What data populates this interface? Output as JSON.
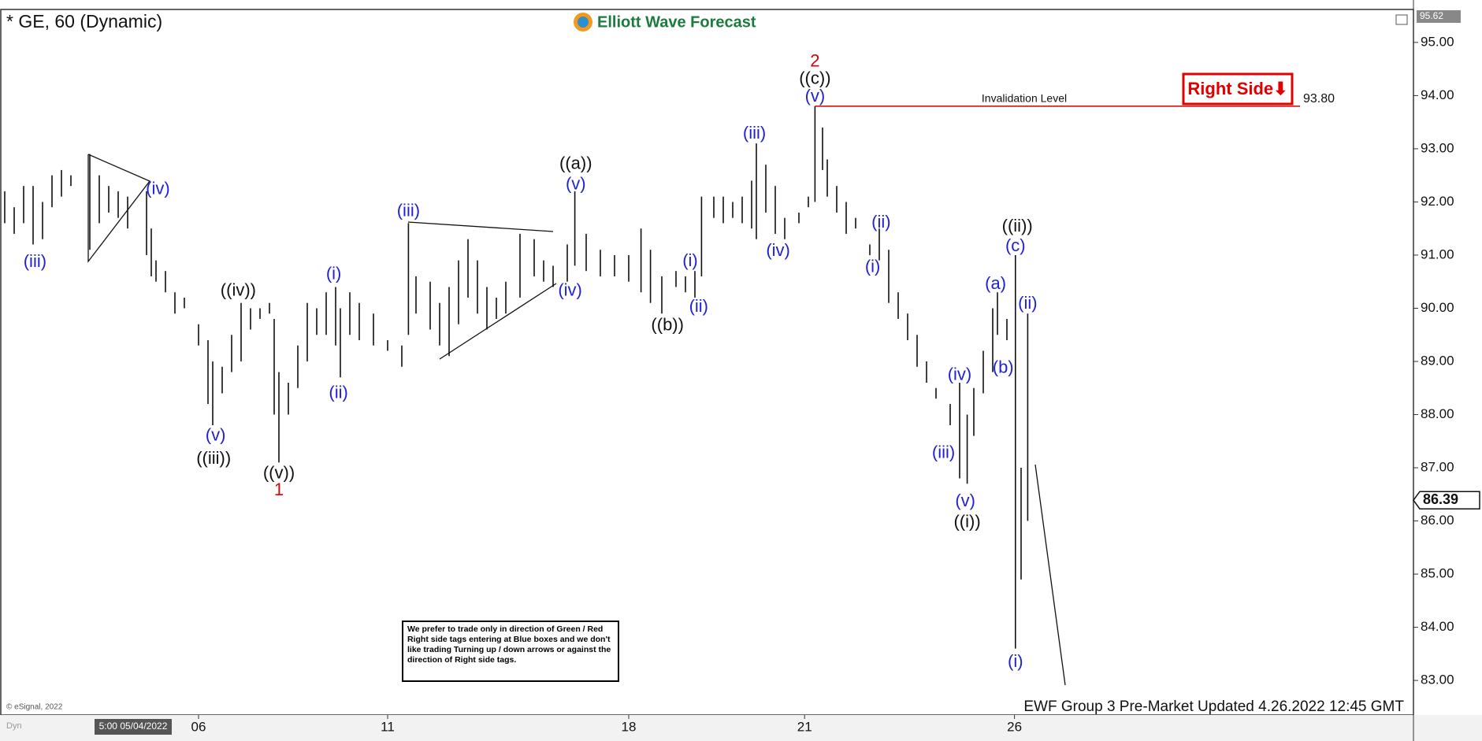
{
  "header": {
    "symbol": "* GE, 60 (Dynamic)",
    "logo": "Elliott Wave Forecast",
    "tag": "Right Side⬇"
  },
  "chart_data": {
    "type": "ohlc",
    "xlim": [
      0,
      149.5
    ],
    "ylim": [
      82.35,
      95.62
    ],
    "axis_top_label": 95.62,
    "yticks": [
      {
        "value": 83,
        "label": "83.00"
      },
      {
        "value": 84,
        "label": "84.00"
      },
      {
        "value": 85,
        "label": "85.00"
      },
      {
        "value": 86,
        "label": "86.00"
      },
      {
        "value": 87,
        "label": "87.00"
      },
      {
        "value": 88,
        "label": "88.00"
      },
      {
        "value": 89,
        "label": "89.00"
      },
      {
        "value": 90,
        "label": "90.00"
      },
      {
        "value": 91,
        "label": "91.00"
      },
      {
        "value": 92,
        "label": "92.00"
      },
      {
        "value": 93,
        "label": "93.00"
      },
      {
        "value": 94,
        "label": "94.00"
      },
      {
        "value": 95,
        "label": "95.00"
      }
    ],
    "xticks": [
      {
        "value": 21,
        "label": "06"
      },
      {
        "value": 41,
        "label": "11"
      },
      {
        "value": 66.5,
        "label": "18"
      },
      {
        "value": 85.1,
        "label": "21"
      },
      {
        "value": 107.3,
        "label": "26"
      }
    ],
    "color": "#111111",
    "x": [
      0.5,
      1.5,
      2.5,
      3.5,
      4.5,
      5.5,
      6.5,
      7.5,
      9.5,
      10.5,
      11.5,
      12.5,
      13.5,
      15.5,
      16,
      16.5,
      17.5,
      18.5,
      19.5,
      21,
      22,
      22.5,
      23.5,
      24.5,
      25.5,
      26.5,
      27.5,
      28.5,
      29,
      29.5,
      30.5,
      31.5,
      32.5,
      33.5,
      34.5,
      35.5,
      36,
      37,
      38,
      39.5,
      41,
      42.5,
      43.2,
      44,
      45.5,
      46.5,
      47.5,
      48.5,
      49.5,
      50.5,
      51.5,
      52.5,
      53.5,
      55,
      56.5,
      57.5,
      58.5,
      60,
      60.8,
      62,
      63.5,
      65,
      66.5,
      67.8,
      68.8,
      70,
      71.5,
      72.5,
      73.5,
      74.2,
      75.5,
      76.5,
      77.5,
      78.5,
      79.5,
      80,
      81,
      82,
      83,
      84.5,
      85.5,
      86.2,
      87,
      87.5,
      88.5,
      89.5,
      90.5,
      92,
      93,
      94,
      95,
      96,
      97,
      98,
      99,
      100.5,
      101.5,
      102.3,
      103,
      104,
      105,
      105.5,
      106.5,
      107.4,
      108,
      108.7
    ],
    "high": [
      92.2,
      91.9,
      92.3,
      92.3,
      92.0,
      92.5,
      92.6,
      92.5,
      92.9,
      92.5,
      92.3,
      92.2,
      92.1,
      92.2,
      91.5,
      90.9,
      90.7,
      90.3,
      90.2,
      89.7,
      89.4,
      89.0,
      88.9,
      89.5,
      90.1,
      90.0,
      90.0,
      90.1,
      89.8,
      88.8,
      88.6,
      89.3,
      90.1,
      90.0,
      90.3,
      90.4,
      90.0,
      90.3,
      90.1,
      89.9,
      89.4,
      89.3,
      91.6,
      90.6,
      90.5,
      90.1,
      90.4,
      90.9,
      91.3,
      90.9,
      90.4,
      90.2,
      90.5,
      91.4,
      91.3,
      90.9,
      90.8,
      91.2,
      92.2,
      91.4,
      91.1,
      91.0,
      91.0,
      91.5,
      91.1,
      90.6,
      90.7,
      90.6,
      90.7,
      92.1,
      92.1,
      92.1,
      92.0,
      92.1,
      92.4,
      93.1,
      92.7,
      92.3,
      91.7,
      91.8,
      92.1,
      93.8,
      93.4,
      92.8,
      92.3,
      92.0,
      91.7,
      91.2,
      91.5,
      91.1,
      90.3,
      89.9,
      89.5,
      89.0,
      88.5,
      88.2,
      88.6,
      88.0,
      88.5,
      89.2,
      90.0,
      90.3,
      89.8,
      91.0,
      87.0,
      89.9
    ],
    "low": [
      91.6,
      91.4,
      91.6,
      91.2,
      91.3,
      91.9,
      92.1,
      92.3,
      91.1,
      91.6,
      91.8,
      91.7,
      91.5,
      91.0,
      90.6,
      90.5,
      90.3,
      89.9,
      90.0,
      89.3,
      88.2,
      87.8,
      88.4,
      88.8,
      89.0,
      89.6,
      89.8,
      89.9,
      88.0,
      87.1,
      88.0,
      88.5,
      89.0,
      89.5,
      89.5,
      89.3,
      88.7,
      89.5,
      89.4,
      89.3,
      89.2,
      88.9,
      89.5,
      89.9,
      89.6,
      89.3,
      89.1,
      89.7,
      90.2,
      89.9,
      89.6,
      89.8,
      89.9,
      90.2,
      90.6,
      90.5,
      90.4,
      90.5,
      90.8,
      90.7,
      90.6,
      90.6,
      90.5,
      90.3,
      90.1,
      89.9,
      90.4,
      90.3,
      90.2,
      90.6,
      91.7,
      91.6,
      91.7,
      91.6,
      91.5,
      91.3,
      91.8,
      91.4,
      91.3,
      91.6,
      91.9,
      92.0,
      92.6,
      92.1,
      91.8,
      91.4,
      91.5,
      91.0,
      90.9,
      90.1,
      89.8,
      89.4,
      88.9,
      88.6,
      88.3,
      87.8,
      86.8,
      86.7,
      87.6,
      88.4,
      88.8,
      89.5,
      89.4,
      83.6,
      84.9,
      86.0
    ],
    "last_price": 86.39,
    "invalidation": {
      "label": "Invalidation Level",
      "x": 86.2,
      "value": 93.8,
      "value_label": "93.80"
    },
    "annotations": [
      {
        "text": "(iii)",
        "x": 3.7,
        "y": 90.86,
        "color": "#1f1fd6"
      },
      {
        "text": "(iv)",
        "x": 16.7,
        "y": 92.23,
        "color": "#1f1fd6"
      },
      {
        "text": "(v)",
        "x": 22.8,
        "y": 87.6,
        "color": "#1f1fd6"
      },
      {
        "text": "((iii))",
        "x": 22.6,
        "y": 87.16,
        "color": "#111111"
      },
      {
        "text": "((iv))",
        "x": 25.2,
        "y": 90.32,
        "color": "#111111"
      },
      {
        "text": "((v))",
        "x": 29.5,
        "y": 86.89,
        "color": "#111111"
      },
      {
        "text": "1",
        "x": 29.5,
        "y": 86.57,
        "color": "#e00000"
      },
      {
        "text": "(i)",
        "x": 35.3,
        "y": 90.63,
        "color": "#1f1fd6"
      },
      {
        "text": "(ii)",
        "x": 35.8,
        "y": 88.4,
        "color": "#1f1fd6"
      },
      {
        "text": "(iii)",
        "x": 43.2,
        "y": 91.82,
        "color": "#1f1fd6"
      },
      {
        "text": "((a))",
        "x": 60.9,
        "y": 92.71,
        "color": "#111111"
      },
      {
        "text": "(v)",
        "x": 60.9,
        "y": 92.32,
        "color": "#1f1fd6"
      },
      {
        "text": "(iv)",
        "x": 60.3,
        "y": 90.32,
        "color": "#1f1fd6"
      },
      {
        "text": "((b))",
        "x": 70.6,
        "y": 89.67,
        "color": "#111111"
      },
      {
        "text": "(i)",
        "x": 73.0,
        "y": 90.88,
        "color": "#1f1fd6"
      },
      {
        "text": "(ii)",
        "x": 73.9,
        "y": 90.02,
        "color": "#1f1fd6"
      },
      {
        "text": "(iii)",
        "x": 79.8,
        "y": 93.28,
        "color": "#1f1fd6"
      },
      {
        "text": "(iv)",
        "x": 82.3,
        "y": 91.07,
        "color": "#1f1fd6"
      },
      {
        "text": "2",
        "x": 86.2,
        "y": 94.63,
        "color": "#e00000"
      },
      {
        "text": "((c))",
        "x": 86.2,
        "y": 94.31,
        "color": "#111111"
      },
      {
        "text": "(v)",
        "x": 86.2,
        "y": 93.97,
        "color": "#1f1fd6"
      },
      {
        "text": "(ii)",
        "x": 93.2,
        "y": 91.6,
        "color": "#1f1fd6"
      },
      {
        "text": "(i)",
        "x": 92.3,
        "y": 90.77,
        "color": "#1f1fd6"
      },
      {
        "text": "(iv)",
        "x": 101.5,
        "y": 88.74,
        "color": "#1f1fd6"
      },
      {
        "text": "(iii)",
        "x": 99.8,
        "y": 87.27,
        "color": "#1f1fd6"
      },
      {
        "text": "(v)",
        "x": 102.1,
        "y": 86.36,
        "color": "#1f1fd6"
      },
      {
        "text": "((i))",
        "x": 102.3,
        "y": 85.97,
        "color": "#111111"
      },
      {
        "text": "((ii))",
        "x": 107.6,
        "y": 91.53,
        "color": "#111111"
      },
      {
        "text": "(c)",
        "x": 107.4,
        "y": 91.16,
        "color": "#1f1fd6"
      },
      {
        "text": "(a)",
        "x": 105.3,
        "y": 90.45,
        "color": "#1f1fd6"
      },
      {
        "text": "(b)",
        "x": 106.1,
        "y": 88.87,
        "color": "#1f1fd6"
      },
      {
        "text": "(ii)",
        "x": 108.7,
        "y": 90.08,
        "color": "#1f1fd6"
      },
      {
        "text": "(i)",
        "x": 107.4,
        "y": 83.34,
        "color": "#1f1fd6"
      }
    ]
  },
  "footer": {
    "disclaimer": "We prefer to trade only in direction of Green / Red Right side tags entering at Blue boxes and we don't like trading Turning up / down arrows or against the direction of Right side tags.",
    "copyright": "© eSignal, 2022",
    "dyn": "Dyn",
    "cursor_time": "5:00 05/04/2022",
    "update": "EWF Group 3 Pre-Market Updated 4.26.2022 12:45 GMT"
  }
}
